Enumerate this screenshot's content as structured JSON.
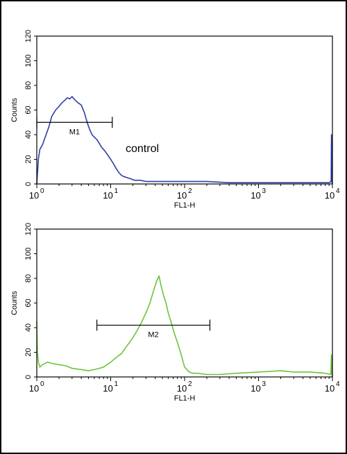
{
  "chart_data": [
    {
      "type": "line",
      "xscale": "log",
      "xlim": [
        1,
        10000
      ],
      "ylim": [
        0,
        120
      ],
      "xlabel": "FL1-H",
      "ylabel": "Counts",
      "yticks": [
        "0",
        "20",
        "40",
        "60",
        "80",
        "100",
        "120"
      ],
      "xticks": [
        {
          "base": "10",
          "exp": "0"
        },
        {
          "base": "10",
          "exp": "1"
        },
        {
          "base": "10",
          "exp": "2"
        },
        {
          "base": "10",
          "exp": "3"
        },
        {
          "base": "10",
          "exp": "4"
        }
      ],
      "series": [
        {
          "color": "#2a3ea8",
          "x": [
            1,
            1.05,
            1.1,
            1.2,
            1.3,
            1.45,
            1.6,
            1.8,
            2.0,
            2.2,
            2.4,
            2.6,
            2.8,
            3.0,
            3.3,
            3.6,
            4.0,
            4.4,
            4.8,
            5.2,
            5.6,
            6.0,
            6.5,
            7.0,
            7.5,
            8.0,
            8.5,
            9.0,
            9.5,
            10,
            11,
            12,
            13,
            14,
            15,
            17,
            19,
            21,
            25,
            30,
            40,
            60,
            100,
            200,
            400,
            1000,
            2000,
            5000,
            9000,
            9600,
            9700,
            9800,
            10000
          ],
          "y": [
            0,
            20,
            28,
            32,
            38,
            46,
            55,
            60,
            63,
            66,
            68,
            70,
            69,
            71,
            68,
            66,
            64,
            58,
            50,
            44,
            40,
            38,
            36,
            33,
            30,
            28,
            26,
            24,
            22,
            20,
            16,
            12,
            9,
            7,
            6,
            5,
            4,
            3,
            3,
            2,
            2,
            2,
            2,
            2,
            1,
            1,
            1,
            1,
            1,
            2,
            40,
            2,
            0
          ]
        }
      ],
      "marker": {
        "label": "M1",
        "x_start": 1,
        "x_end": 10.5,
        "y": 50
      },
      "annotation": "control"
    },
    {
      "type": "line",
      "xscale": "log",
      "xlim": [
        1,
        10000
      ],
      "ylim": [
        0,
        120
      ],
      "xlabel": "FL1-H",
      "ylabel": "Counts",
      "yticks": [
        "0",
        "20",
        "40",
        "60",
        "80",
        "100",
        "120"
      ],
      "xticks": [
        {
          "base": "10",
          "exp": "0"
        },
        {
          "base": "10",
          "exp": "1"
        },
        {
          "base": "10",
          "exp": "2"
        },
        {
          "base": "10",
          "exp": "3"
        },
        {
          "base": "10",
          "exp": "4"
        }
      ],
      "series": [
        {
          "color": "#6cc23a",
          "x": [
            1,
            1.02,
            1.05,
            1.1,
            1.2,
            1.4,
            1.6,
            2,
            2.5,
            3,
            4,
            5,
            6,
            7,
            8,
            10,
            12,
            14,
            16,
            18,
            20,
            23,
            26,
            30,
            34,
            38,
            42,
            45,
            48,
            52,
            56,
            60,
            66,
            72,
            80,
            90,
            100,
            115,
            130,
            150,
            200,
            300,
            500,
            1000,
            2000,
            3000,
            5000,
            8000,
            9500,
            9700,
            9800,
            10000
          ],
          "y": [
            45,
            20,
            12,
            8,
            10,
            12,
            11,
            10,
            9,
            7,
            6,
            5,
            6,
            7,
            8,
            12,
            16,
            19,
            24,
            28,
            32,
            38,
            44,
            52,
            60,
            70,
            78,
            82,
            74,
            66,
            60,
            52,
            44,
            36,
            28,
            18,
            8,
            4,
            3,
            3,
            2,
            2,
            3,
            4,
            5,
            4,
            4,
            3,
            2,
            18,
            3,
            0
          ]
        }
      ],
      "marker": {
        "label": "M2",
        "x_start": 6.5,
        "x_end": 220,
        "y": 42
      }
    }
  ]
}
